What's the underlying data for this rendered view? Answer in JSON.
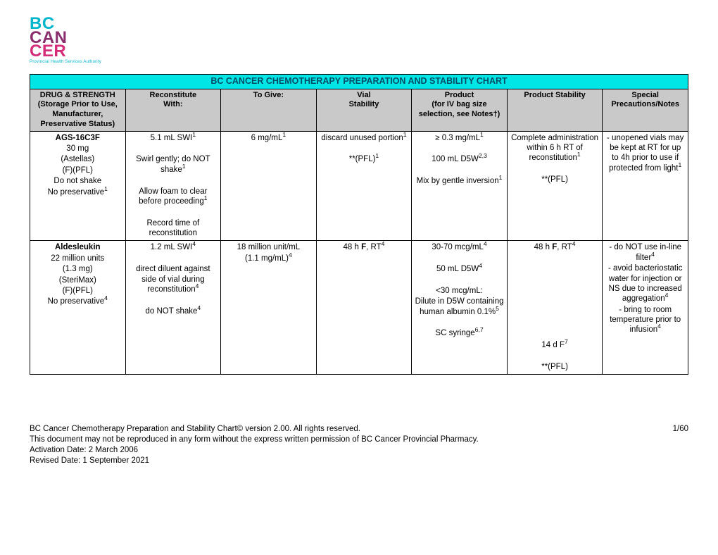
{
  "logo": {
    "l1": "BC",
    "l2": "CAN",
    "l3": "CER",
    "sub": "Provincial Health Services Authority"
  },
  "table": {
    "title": "BC CANCER CHEMOTHERAPY PREPARATION AND STABILITY CHART",
    "title_bg": "#00e5e5",
    "header_bg": "#c9c9c9",
    "col_widths": [
      "14.5%",
      "14.5%",
      "14.5%",
      "14.5%",
      "14.5%",
      "14.5%",
      "13%"
    ],
    "headers": {
      "c1a": "DRUG & STRENGTH",
      "c1b": "(Storage Prior to Use, Manufacturer, Preservative Status)",
      "c2a": "Reconstitute",
      "c2b": "With:",
      "c3": "To Give:",
      "c4a": "Vial",
      "c4b": "Stability",
      "c5a": "Product",
      "c5b": "(for IV bag size selection, see Notes†)",
      "c6": "Product Stability",
      "c7a": "Special",
      "c7b": "Precautions/Notes"
    },
    "rows": [
      {
        "drug_name": "AGS-16C3F",
        "drug_lines": [
          "30 mg",
          "(Astellas)",
          "(F)(PFL)",
          "Do not shake"
        ],
        "drug_last": "No preservative",
        "drug_last_sup": "1",
        "recon": [
          {
            "t": "5.1 mL SWI",
            "sup": "1"
          },
          {
            "t": ""
          },
          {
            "t": "Swirl gently; do NOT shake",
            "sup": "1"
          },
          {
            "t": ""
          },
          {
            "t": "Allow foam to clear before proceeding",
            "sup": "1"
          },
          {
            "t": ""
          },
          {
            "t": "Record time of reconstitution"
          }
        ],
        "togive": [
          {
            "t": "6 mg/mL",
            "sup": "1"
          }
        ],
        "vial": [
          {
            "t": "discard unused portion",
            "sup": "1"
          },
          {
            "t": ""
          },
          {
            "t": "**(PFL)",
            "sup": "1"
          }
        ],
        "product": [
          {
            "t": "≥ 0.3 mg/mL",
            "sup": "1"
          },
          {
            "t": ""
          },
          {
            "t": "100 mL D5W",
            "sup": "2,3"
          },
          {
            "t": ""
          },
          {
            "t": "Mix by gentle inversion",
            "sup": "1"
          }
        ],
        "pstab": [
          {
            "t": "Complete administration within 6 h RT of reconstitution",
            "sup": "1"
          },
          {
            "t": ""
          },
          {
            "t": "**(PFL)"
          }
        ],
        "notes": [
          {
            "t": "- unopened vials may be kept at RT for up to 4h prior to use if protected from light",
            "sup": "1"
          }
        ]
      },
      {
        "drug_name": "Aldesleukin",
        "drug_lines": [
          "22 million units",
          "(1.3 mg)",
          "(SteriMax)",
          "(F)(PFL)"
        ],
        "drug_last": "No preservative",
        "drug_last_sup": "4",
        "recon": [
          {
            "t": "1.2 mL SWI",
            "sup": "4"
          },
          {
            "t": ""
          },
          {
            "t": "direct diluent against side of vial during reconstitution",
            "sup": "4"
          },
          {
            "t": ""
          },
          {
            "t": "do NOT shake",
            "sup": "4"
          }
        ],
        "togive": [
          {
            "t": "18 million unit/mL"
          },
          {
            "t": "(1.1 mg/mL)",
            "sup": "4"
          }
        ],
        "vial": [
          {
            "html": "48 h <b>F</b>, RT",
            "sup": "4"
          }
        ],
        "product": [
          {
            "t": "30-70 mcg/mL",
            "sup": "4"
          },
          {
            "t": ""
          },
          {
            "t": "50 mL D5W",
            "sup": "4"
          },
          {
            "t": ""
          },
          {
            "t": "<30 mcg/mL:"
          },
          {
            "t": "Dilute in D5W containing human albumin 0.1%",
            "sup": "5"
          },
          {
            "t": ""
          },
          {
            "t": "SC syringe",
            "sup": "6,7"
          }
        ],
        "pstab": [
          {
            "html": "48 h <b>F</b>, RT",
            "sup": "4"
          },
          {
            "t": ""
          },
          {
            "t": ""
          },
          {
            "t": ""
          },
          {
            "t": ""
          },
          {
            "t": ""
          },
          {
            "t": ""
          },
          {
            "t": ""
          },
          {
            "t": ""
          },
          {
            "t": "14 d F",
            "sup": "7"
          },
          {
            "t": ""
          },
          {
            "t": "**(PFL)"
          }
        ],
        "notes": [
          {
            "t": "- do NOT use in-line filter",
            "sup": "4"
          },
          {
            "t": "- avoid bacteriostatic water for injection or NS due to increased aggregation",
            "sup": "4"
          },
          {
            "t": "- bring to room temperature prior to infusion",
            "sup": "4"
          }
        ]
      }
    ]
  },
  "footer": {
    "line1_left": "BC Cancer Chemotherapy Preparation and Stability Chart© version 2.00. All rights reserved.",
    "line1_right": "1/60",
    "line2": "This document may not be reproduced in any form without the express written permission of BC Cancer Provincial Pharmacy.",
    "line3": "Activation Date: 2 March 2006",
    "line4": "Revised Date: 1 September 2021"
  }
}
